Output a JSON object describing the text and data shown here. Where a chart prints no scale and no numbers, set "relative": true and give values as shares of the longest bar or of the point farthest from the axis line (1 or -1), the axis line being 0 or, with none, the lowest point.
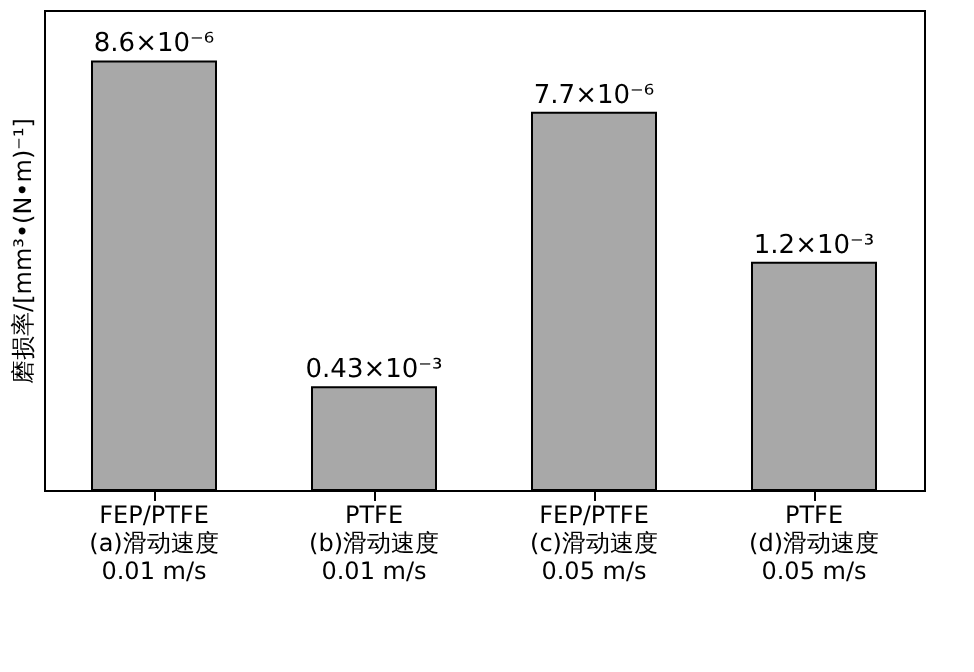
{
  "chart_data": {
    "type": "bar",
    "relative": true,
    "ylabel": "磨损率/[mm³•(N•m)⁻¹]",
    "categories": [
      "FEP/PTFE\n(a)滑动速度\n0.01 m/s",
      "PTFE\n(b)滑动速度\n0.01 m/s",
      "FEP/PTFE\n(c)滑动速度\n0.05 m/s",
      "PTFE\n(d)滑动速度\n0.05 m/s"
    ],
    "values": [
      1,
      0.24,
      0.88,
      0.53
    ],
    "annotations": [
      {
        "text": "8.6×10⁻⁶",
        "x": "FEP/PTFE\n(a)滑动速度\n0.01 m/s",
        "y": 1
      },
      {
        "text": "0.43×10⁻³",
        "x": "PTFE\n(b)滑动速度\n0.01 m/s",
        "y": 0.24
      },
      {
        "text": "7.7×10⁻⁶",
        "x": "FEP/PTFE\n(c)滑动速度\n0.05 m/s",
        "y": 0.88
      },
      {
        "text": "1.2×10⁻³",
        "x": "PTFE\n(d)滑动速度\n0.05 m/s",
        "y": 0.53
      }
    ],
    "color": "#a8a8a8",
    "grid": false
  }
}
